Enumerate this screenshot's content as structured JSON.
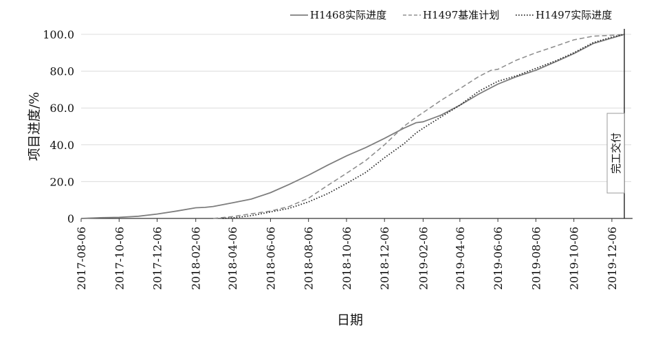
{
  "chart_data": {
    "type": "line",
    "title": "",
    "xlabel": "日期",
    "ylabel": "项目进度/%",
    "x_type": "date",
    "xlim": [
      "2017-08-06",
      "2020-01-06"
    ],
    "x_ticks": [
      "2017-08-06",
      "2017-10-06",
      "2017-12-06",
      "2018-02-06",
      "2018-04-06",
      "2018-06-06",
      "2018-08-06",
      "2018-10-06",
      "2018-12-06",
      "2019-02-06",
      "2019-04-06",
      "2019-06-06",
      "2019-08-06",
      "2019-10-06",
      "2019-12-06"
    ],
    "ylim": [
      0,
      100
    ],
    "y_ticks": [
      0,
      20,
      40,
      60,
      80,
      100
    ],
    "y_tick_labels": [
      "0",
      "20.0",
      "40.0",
      "60.0",
      "80.0",
      "100.0"
    ],
    "grid": "horizontal",
    "legend_position": "top",
    "colors": {
      "solid": "#7d7d7d",
      "dashed": "#8f8f8f",
      "dotted": "#2b2b2b",
      "grid": "#dcdcdc",
      "axis": "#333333"
    },
    "series": [
      {
        "name": "H1468实际进度",
        "style": "solid",
        "points": [
          [
            "2017-08-06",
            0
          ],
          [
            "2017-09-06",
            0.4
          ],
          [
            "2017-10-06",
            0.6
          ],
          [
            "2017-11-06",
            1.2
          ],
          [
            "2017-12-06",
            2.4
          ],
          [
            "2018-01-06",
            4.0
          ],
          [
            "2018-02-06",
            5.8
          ],
          [
            "2018-02-21",
            6.0
          ],
          [
            "2018-03-06",
            6.5
          ],
          [
            "2018-04-06",
            8.5
          ],
          [
            "2018-05-06",
            10.5
          ],
          [
            "2018-06-06",
            14.0
          ],
          [
            "2018-07-06",
            18.5
          ],
          [
            "2018-08-06",
            23.5
          ],
          [
            "2018-09-06",
            29.0
          ],
          [
            "2018-10-06",
            34.0
          ],
          [
            "2018-11-06",
            38.5
          ],
          [
            "2018-12-06",
            43.5
          ],
          [
            "2019-01-06",
            49.0
          ],
          [
            "2019-01-26",
            52.0
          ],
          [
            "2019-02-06",
            52.5
          ],
          [
            "2019-03-06",
            56.0
          ],
          [
            "2019-04-06",
            61.5
          ],
          [
            "2019-05-06",
            67.5
          ],
          [
            "2019-06-06",
            73.0
          ],
          [
            "2019-07-06",
            77.0
          ],
          [
            "2019-08-06",
            80.5
          ],
          [
            "2019-09-06",
            85.0
          ],
          [
            "2019-10-06",
            89.5
          ],
          [
            "2019-11-06",
            95.0
          ],
          [
            "2019-12-06",
            98.0
          ],
          [
            "2019-12-26",
            100.0
          ]
        ]
      },
      {
        "name": "H1497基准计划",
        "style": "dashed",
        "points": [
          [
            "2018-03-06",
            0
          ],
          [
            "2018-04-06",
            1.0
          ],
          [
            "2018-05-06",
            2.5
          ],
          [
            "2018-06-06",
            4.0
          ],
          [
            "2018-07-06",
            6.5
          ],
          [
            "2018-08-06",
            11.0
          ],
          [
            "2018-09-06",
            18.0
          ],
          [
            "2018-10-06",
            24.5
          ],
          [
            "2018-11-06",
            31.5
          ],
          [
            "2018-12-06",
            40.0
          ],
          [
            "2019-01-06",
            50.0
          ],
          [
            "2019-01-26",
            55.0
          ],
          [
            "2019-02-06",
            57.5
          ],
          [
            "2019-03-06",
            64.0
          ],
          [
            "2019-04-06",
            70.5
          ],
          [
            "2019-05-06",
            77.0
          ],
          [
            "2019-05-26",
            80.5
          ],
          [
            "2019-06-06",
            81.0
          ],
          [
            "2019-07-06",
            86.0
          ],
          [
            "2019-08-06",
            90.0
          ],
          [
            "2019-09-06",
            93.5
          ],
          [
            "2019-10-06",
            97.0
          ],
          [
            "2019-11-06",
            99.0
          ],
          [
            "2019-12-06",
            99.5
          ],
          [
            "2019-12-26",
            100.0
          ]
        ]
      },
      {
        "name": "H1497实际进度",
        "style": "dotted",
        "points": [
          [
            "2018-03-21",
            0
          ],
          [
            "2018-04-06",
            0.3
          ],
          [
            "2018-05-06",
            1.5
          ],
          [
            "2018-06-06",
            3.5
          ],
          [
            "2018-07-06",
            5.5
          ],
          [
            "2018-08-06",
            9.0
          ],
          [
            "2018-09-06",
            13.5
          ],
          [
            "2018-10-06",
            19.0
          ],
          [
            "2018-11-06",
            25.0
          ],
          [
            "2018-12-06",
            33.0
          ],
          [
            "2019-01-06",
            40.5
          ],
          [
            "2019-01-26",
            46.5
          ],
          [
            "2019-02-06",
            49.0
          ],
          [
            "2019-03-06",
            55.0
          ],
          [
            "2019-04-06",
            61.5
          ],
          [
            "2019-05-06",
            69.0
          ],
          [
            "2019-06-06",
            74.5
          ],
          [
            "2019-07-06",
            77.5
          ],
          [
            "2019-08-06",
            81.5
          ],
          [
            "2019-09-06",
            85.5
          ],
          [
            "2019-10-06",
            90.0
          ],
          [
            "2019-11-06",
            95.5
          ],
          [
            "2019-12-06",
            98.5
          ],
          [
            "2019-12-26",
            100.0
          ]
        ]
      }
    ],
    "annotations": [
      {
        "text": "完工交付",
        "x": "2019-12-26"
      }
    ]
  }
}
